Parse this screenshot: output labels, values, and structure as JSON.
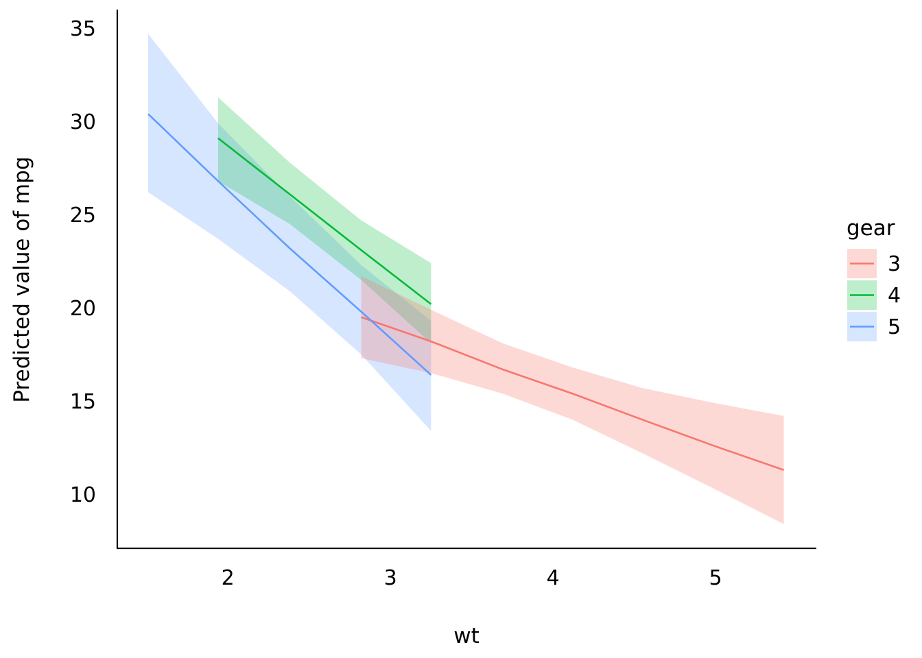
{
  "chart_data": {
    "type": "line",
    "xlabel": "wt",
    "ylabel": "Predicted value of mpg",
    "xlim": [
      1.32,
      5.62
    ],
    "ylim": [
      7.1,
      36.0
    ],
    "xticks": [
      2,
      3,
      4,
      5
    ],
    "yticks": [
      10,
      15,
      20,
      25,
      30,
      35
    ],
    "grid": false,
    "legend": {
      "title": "gear",
      "position": "right"
    },
    "series": [
      {
        "name": "3",
        "color": "#F8766D",
        "x": [
          2.82,
          3.25,
          3.69,
          4.12,
          4.55,
          4.99,
          5.42
        ],
        "y": [
          19.5,
          18.2,
          16.7,
          15.4,
          14.0,
          12.6,
          11.3
        ],
        "lower": [
          17.3,
          16.5,
          15.4,
          14.0,
          12.2,
          10.3,
          8.4
        ],
        "upper": [
          21.7,
          19.9,
          18.1,
          16.8,
          15.7,
          14.9,
          14.2
        ]
      },
      {
        "name": "4",
        "color": "#00BA38",
        "x": [
          1.94,
          2.38,
          2.82,
          3.25
        ],
        "y": [
          29.1,
          26.1,
          23.1,
          20.2
        ],
        "lower": [
          26.8,
          24.5,
          21.5,
          18.1
        ],
        "upper": [
          31.3,
          27.8,
          24.7,
          22.4
        ]
      },
      {
        "name": "5",
        "color": "#619CFF",
        "x": [
          1.51,
          1.94,
          2.38,
          2.82,
          3.25
        ],
        "y": [
          30.4,
          26.8,
          23.2,
          19.8,
          16.4
        ],
        "lower": [
          26.2,
          23.7,
          20.9,
          17.5,
          13.4
        ],
        "upper": [
          34.7,
          29.9,
          26.0,
          22.3,
          19.3
        ]
      }
    ]
  }
}
